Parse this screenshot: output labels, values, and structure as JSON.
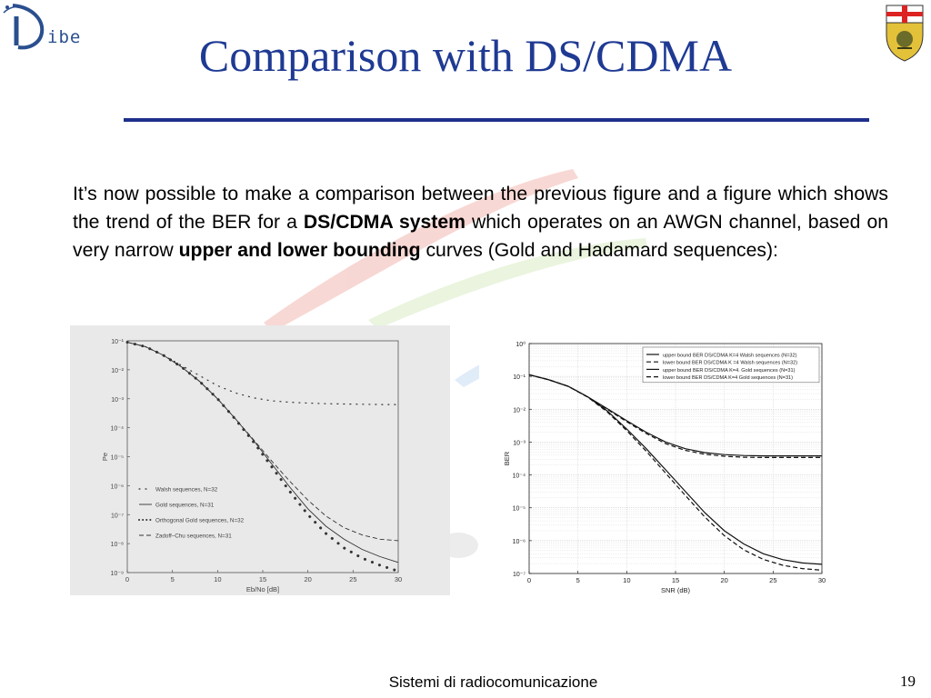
{
  "logo": {
    "text": "ibe"
  },
  "title": "Comparison with DS/CDMA",
  "paragraph": {
    "t1": "It’s now possible to make a comparison between the previous figure and a figure which shows the trend of the BER for a ",
    "b1": "DS/CDMA system",
    "t2": " which operates on an AWGN channel, based on very narrow ",
    "b2": "upper and lower bounding",
    "t3": " curves (Gold and Hadamard sequences):"
  },
  "footer": {
    "course": "Sistemi di radiocomunicazione",
    "page": "19"
  },
  "colors": {
    "title": "#1f3a93",
    "rule": "#1f2f8c"
  },
  "chart_data": [
    {
      "type": "line",
      "xlabel": "Eb/No [dB]",
      "ylabel": "Pe",
      "x_ticks": [
        "0",
        "5",
        "10",
        "15",
        "20",
        "25",
        "30"
      ],
      "y_ticks": [
        "10⁻¹",
        "10⁻²",
        "10⁻³",
        "10⁻⁴",
        "10⁻⁵",
        "10⁻⁶",
        "10⁻⁷",
        "10⁻⁸",
        "10⁻⁹"
      ],
      "xlim": [
        0,
        30
      ],
      "ylim_log10": [
        -9,
        -1
      ],
      "legend_position": "bottom-left",
      "series": [
        {
          "name": "Walsh sequences, N=32",
          "style": "dotted",
          "x": [
            0,
            2,
            4,
            6,
            8,
            10,
            12,
            14,
            16,
            18,
            20,
            22,
            24,
            26,
            28,
            30
          ],
          "log10_y": [
            -1.05,
            -1.2,
            -1.5,
            -1.85,
            -2.2,
            -2.55,
            -2.8,
            -2.97,
            -3.07,
            -3.12,
            -3.15,
            -3.17,
            -3.18,
            -3.19,
            -3.2,
            -3.2
          ]
        },
        {
          "name": "Gold sequences, N=31",
          "style": "solid",
          "x": [
            0,
            2,
            4,
            6,
            8,
            10,
            12,
            14,
            16,
            18,
            20,
            22,
            24,
            26,
            28,
            30
          ],
          "log10_y": [
            -1.05,
            -1.2,
            -1.5,
            -1.9,
            -2.4,
            -3.0,
            -3.7,
            -4.45,
            -5.25,
            -6.05,
            -6.8,
            -7.4,
            -7.85,
            -8.2,
            -8.45,
            -8.65
          ]
        },
        {
          "name": "Orthogonal Gold sequences, N=32",
          "style": "large-dots",
          "x": [
            0,
            2,
            4,
            6,
            8,
            10,
            12,
            14,
            16,
            18,
            20,
            22,
            24,
            26,
            28,
            30
          ],
          "log10_y": [
            -1.05,
            -1.2,
            -1.5,
            -1.9,
            -2.4,
            -3.0,
            -3.72,
            -4.5,
            -5.35,
            -6.2,
            -7.0,
            -7.65,
            -8.15,
            -8.5,
            -8.75,
            -8.95
          ]
        },
        {
          "name": "Zadoff–Chu sequences, N=31",
          "style": "dashed",
          "x": [
            0,
            2,
            4,
            6,
            8,
            10,
            12,
            14,
            16,
            18,
            20,
            22,
            24,
            26,
            28,
            30
          ],
          "log10_y": [
            -1.05,
            -1.2,
            -1.5,
            -1.9,
            -2.4,
            -3.0,
            -3.7,
            -4.42,
            -5.15,
            -5.85,
            -6.5,
            -7.05,
            -7.45,
            -7.7,
            -7.85,
            -7.9
          ]
        }
      ]
    },
    {
      "type": "line",
      "xlabel": "SNR (dB)",
      "ylabel": "BER",
      "x_ticks": [
        "0",
        "5",
        "10",
        "15",
        "20",
        "25",
        "30"
      ],
      "y_ticks": [
        "10⁰",
        "10⁻¹",
        "10⁻²",
        "10⁻³",
        "10⁻⁴",
        "10⁻⁵",
        "10⁻⁶",
        "10⁻⁷"
      ],
      "xlim": [
        0,
        30
      ],
      "ylim_log10": [
        -7,
        0
      ],
      "grid": true,
      "legend_position": "top-right",
      "series": [
        {
          "name": "upper bound BER DS/CDMA K=4 Walsh sequences (N=32)",
          "style": "solid",
          "x": [
            0,
            2,
            4,
            6,
            8,
            10,
            12,
            14,
            16,
            18,
            20,
            22,
            24,
            26,
            28,
            30
          ],
          "log10_y": [
            -0.95,
            -1.1,
            -1.3,
            -1.62,
            -1.98,
            -2.35,
            -2.7,
            -3.0,
            -3.2,
            -3.32,
            -3.38,
            -3.41,
            -3.42,
            -3.42,
            -3.42,
            -3.42
          ]
        },
        {
          "name": "lower bound BER DS/CDMA K =4 Walsh sequences (N=32)",
          "style": "dashed",
          "x": [
            0,
            2,
            4,
            6,
            8,
            10,
            12,
            14,
            16,
            18,
            20,
            22,
            24,
            26,
            28,
            30
          ],
          "log10_y": [
            -0.95,
            -1.1,
            -1.3,
            -1.63,
            -2.0,
            -2.38,
            -2.74,
            -3.05,
            -3.25,
            -3.37,
            -3.43,
            -3.46,
            -3.47,
            -3.47,
            -3.47,
            -3.47
          ]
        },
        {
          "name": "upper bound BER DS/CDMA K=4. Gold sequences (N=31)",
          "style": "solid",
          "x": [
            0,
            2,
            4,
            6,
            8,
            10,
            12,
            14,
            16,
            18,
            20,
            22,
            24,
            26,
            28,
            30
          ],
          "log10_y": [
            -0.95,
            -1.1,
            -1.3,
            -1.62,
            -2.05,
            -2.6,
            -3.2,
            -3.85,
            -4.5,
            -5.15,
            -5.7,
            -6.1,
            -6.4,
            -6.58,
            -6.68,
            -6.72
          ]
        },
        {
          "name": "lower bound BER DS/CDMA K=4 Gold sequences (N=31)",
          "style": "dashed",
          "x": [
            0,
            2,
            4,
            6,
            8,
            10,
            12,
            14,
            16,
            18,
            20,
            22,
            24,
            26,
            28,
            30
          ],
          "log10_y": [
            -0.95,
            -1.1,
            -1.3,
            -1.63,
            -2.08,
            -2.65,
            -3.28,
            -3.95,
            -4.62,
            -5.28,
            -5.85,
            -6.28,
            -6.57,
            -6.75,
            -6.85,
            -6.9
          ]
        }
      ]
    }
  ]
}
